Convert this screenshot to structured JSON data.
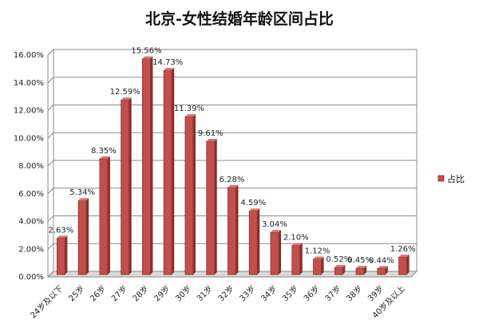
{
  "chart_data": {
    "type": "bar",
    "title": "北京-女性结婚年龄区间占比",
    "categories": [
      "24岁及以下",
      "25岁",
      "26岁",
      "27岁",
      "28岁",
      "29岁",
      "30岁",
      "31岁",
      "32岁",
      "33岁",
      "34岁",
      "35岁",
      "36岁",
      "37岁",
      "38岁",
      "39岁",
      "40岁及以上"
    ],
    "series": [
      {
        "name": "占比",
        "values": [
          2.63,
          5.34,
          8.35,
          12.59,
          15.56,
          14.73,
          11.39,
          9.61,
          6.28,
          4.59,
          3.04,
          2.1,
          1.12,
          0.52,
          0.45,
          0.44,
          1.26
        ]
      }
    ],
    "data_labels": [
      "2.63%",
      "5.34%",
      "8.35%",
      "12.59%",
      "15.56%",
      "14.73%",
      "11.39%",
      "9.61%",
      "6.28%",
      "4.59%",
      "3.04%",
      "2.10%",
      "1.12%",
      "0.52%",
      "0.45%",
      "0.44%",
      "1.26%"
    ],
    "y_ticks": [
      "0.00%",
      "2.00%",
      "4.00%",
      "6.00%",
      "8.00%",
      "10.00%",
      "12.00%",
      "14.00%",
      "16.00%"
    ],
    "ylim": [
      0,
      16
    ],
    "xlabel": "",
    "ylabel": "",
    "grid": true,
    "legend": "right",
    "bar_color": "#c0504d",
    "bar_edge_color": "#8c2a27"
  }
}
